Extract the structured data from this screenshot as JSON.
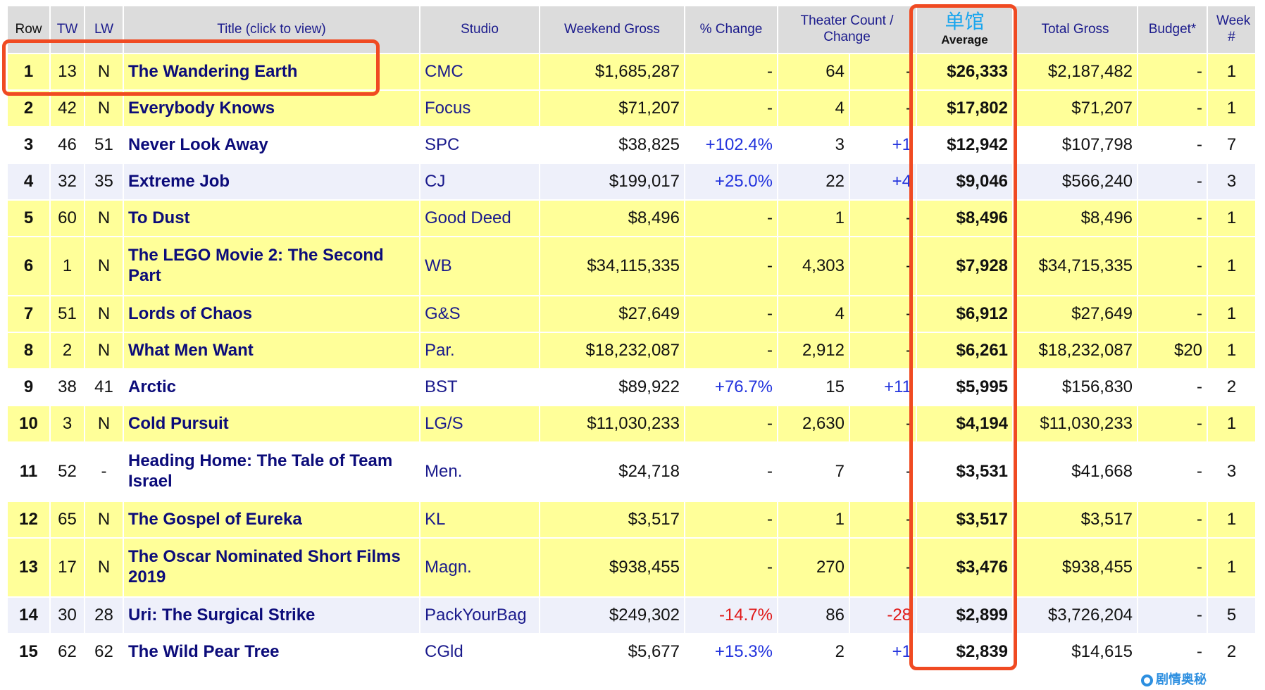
{
  "headers": [
    "Row",
    "TW",
    "LW",
    "Title (click to view)",
    "Studio",
    "Weekend Gross",
    "% Change",
    "Theater Count / Change",
    "Average",
    "Total Gross",
    "Budget*",
    "Week #"
  ],
  "annotation": {
    "average_label_cn": "单馆",
    "watermark": "剧情奥秘"
  },
  "colors": {
    "new_row": "#ffff99",
    "alt_row": "#eef0fa",
    "positive": "#2233dd",
    "negative": "#e01818",
    "highlight_box": "#f04a22"
  },
  "rows": [
    {
      "row": "1",
      "tw": "13",
      "lw": "N",
      "title": "The Wandering Earth",
      "studio": "CMC",
      "weekend": "$1,685,287",
      "pct": "-",
      "theaters": "64",
      "tchange": "-",
      "avg": "$26,333",
      "total": "$2,187,482",
      "budget": "-",
      "week": "1",
      "style": "new"
    },
    {
      "row": "2",
      "tw": "42",
      "lw": "N",
      "title": "Everybody Knows",
      "studio": "Focus",
      "weekend": "$71,207",
      "pct": "-",
      "theaters": "4",
      "tchange": "-",
      "avg": "$17,802",
      "total": "$71,207",
      "budget": "-",
      "week": "1",
      "style": "new"
    },
    {
      "row": "3",
      "tw": "46",
      "lw": "51",
      "title": "Never Look Away",
      "studio": "SPC",
      "weekend": "$38,825",
      "pct": "+102.4%",
      "theaters": "3",
      "tchange": "+1",
      "avg": "$12,942",
      "total": "$107,798",
      "budget": "-",
      "week": "7",
      "style": "odd"
    },
    {
      "row": "4",
      "tw": "32",
      "lw": "35",
      "title": "Extreme Job",
      "studio": "CJ",
      "weekend": "$199,017",
      "pct": "+25.0%",
      "theaters": "22",
      "tchange": "+4",
      "avg": "$9,046",
      "total": "$566,240",
      "budget": "-",
      "week": "3",
      "style": "even"
    },
    {
      "row": "5",
      "tw": "60",
      "lw": "N",
      "title": "To Dust",
      "studio": "Good Deed",
      "weekend": "$8,496",
      "pct": "-",
      "theaters": "1",
      "tchange": "-",
      "avg": "$8,496",
      "total": "$8,496",
      "budget": "-",
      "week": "1",
      "style": "new"
    },
    {
      "row": "6",
      "tw": "1",
      "lw": "N",
      "title": "The LEGO Movie 2: The Second Part",
      "studio": "WB",
      "weekend": "$34,115,335",
      "pct": "-",
      "theaters": "4,303",
      "tchange": "-",
      "avg": "$7,928",
      "total": "$34,715,335",
      "budget": "-",
      "week": "1",
      "style": "new",
      "two": true
    },
    {
      "row": "7",
      "tw": "51",
      "lw": "N",
      "title": "Lords of Chaos",
      "studio": "G&S",
      "weekend": "$27,649",
      "pct": "-",
      "theaters": "4",
      "tchange": "-",
      "avg": "$6,912",
      "total": "$27,649",
      "budget": "-",
      "week": "1",
      "style": "new"
    },
    {
      "row": "8",
      "tw": "2",
      "lw": "N",
      "title": "What Men Want",
      "studio": "Par.",
      "weekend": "$18,232,087",
      "pct": "-",
      "theaters": "2,912",
      "tchange": "-",
      "avg": "$6,261",
      "total": "$18,232,087",
      "budget": "$20",
      "week": "1",
      "style": "new"
    },
    {
      "row": "9",
      "tw": "38",
      "lw": "41",
      "title": "Arctic",
      "studio": "BST",
      "weekend": "$89,922",
      "pct": "+76.7%",
      "theaters": "15",
      "tchange": "+11",
      "avg": "$5,995",
      "total": "$156,830",
      "budget": "-",
      "week": "2",
      "style": "odd"
    },
    {
      "row": "10",
      "tw": "3",
      "lw": "N",
      "title": "Cold Pursuit",
      "studio": "LG/S",
      "weekend": "$11,030,233",
      "pct": "-",
      "theaters": "2,630",
      "tchange": "-",
      "avg": "$4,194",
      "total": "$11,030,233",
      "budget": "-",
      "week": "1",
      "style": "new"
    },
    {
      "row": "11",
      "tw": "52",
      "lw": "-",
      "title": "Heading Home: The Tale of Team Israel",
      "studio": "Men.",
      "weekend": "$24,718",
      "pct": "-",
      "theaters": "7",
      "tchange": "-",
      "avg": "$3,531",
      "total": "$41,668",
      "budget": "-",
      "week": "3",
      "style": "odd",
      "two": true
    },
    {
      "row": "12",
      "tw": "65",
      "lw": "N",
      "title": "The Gospel of Eureka",
      "studio": "KL",
      "weekend": "$3,517",
      "pct": "-",
      "theaters": "1",
      "tchange": "-",
      "avg": "$3,517",
      "total": "$3,517",
      "budget": "-",
      "week": "1",
      "style": "new"
    },
    {
      "row": "13",
      "tw": "17",
      "lw": "N",
      "title": "The Oscar Nominated Short Films 2019",
      "studio": "Magn.",
      "weekend": "$938,455",
      "pct": "-",
      "theaters": "270",
      "tchange": "-",
      "avg": "$3,476",
      "total": "$938,455",
      "budget": "-",
      "week": "1",
      "style": "new",
      "two": true
    },
    {
      "row": "14",
      "tw": "30",
      "lw": "28",
      "title": "Uri: The Surgical Strike",
      "studio": "PackYourBag",
      "weekend": "$249,302",
      "pct": "-14.7%",
      "theaters": "86",
      "tchange": "-28",
      "avg": "$2,899",
      "total": "$3,726,204",
      "budget": "-",
      "week": "5",
      "style": "even"
    },
    {
      "row": "15",
      "tw": "62",
      "lw": "62",
      "title": "The Wild Pear Tree",
      "studio": "CGld",
      "weekend": "$5,677",
      "pct": "+15.3%",
      "theaters": "2",
      "tchange": "+1",
      "avg": "$2,839",
      "total": "$14,615",
      "budget": "-",
      "week": "2",
      "style": "odd"
    }
  ]
}
